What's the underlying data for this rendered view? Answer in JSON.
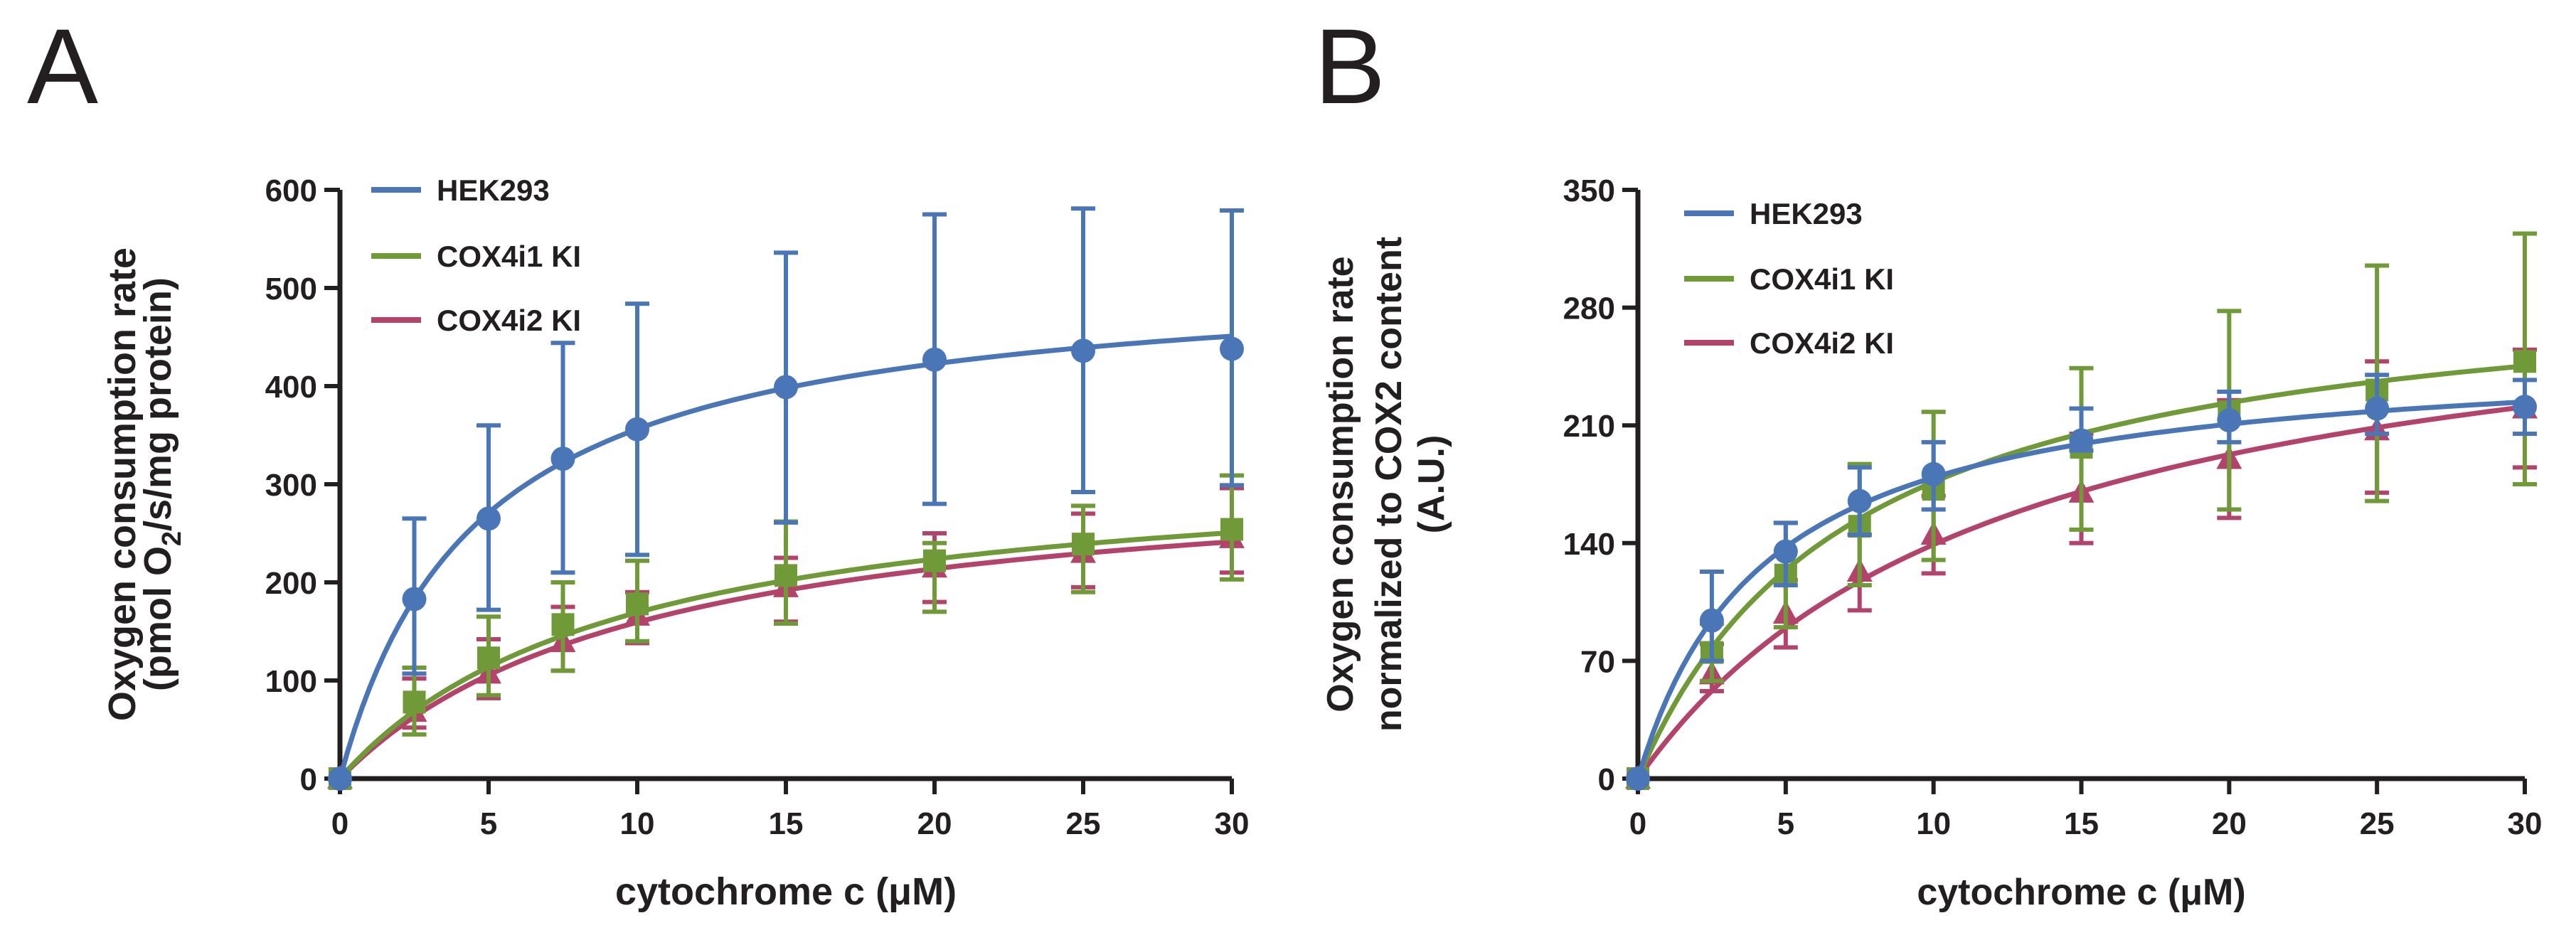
{
  "colors": {
    "axis": "#231f20",
    "HEK293": "#4a76b8",
    "COX4i1 KI": "#6f9a37",
    "COX4i2 KI": "#b4436c"
  },
  "chart_data": [
    {
      "type": "line",
      "panel_label": "A",
      "xlabel": "cytochrome c (μM)",
      "ylabel_lines": [
        "Oxygen consumption rate",
        "(pmol O",
        "2",
        "/s/mg protein)"
      ],
      "xlim": [
        0,
        30
      ],
      "ylim": [
        0,
        600
      ],
      "xticks": [
        0,
        5,
        10,
        15,
        20,
        25,
        30
      ],
      "yticks": [
        0,
        100,
        200,
        300,
        400,
        500,
        600
      ],
      "legend": [
        "HEK293",
        "COX4i1 KI",
        "COX4i2 KI"
      ],
      "x": [
        0,
        2.5,
        5,
        7.5,
        10,
        15,
        20,
        25,
        30
      ],
      "series": [
        {
          "name": "HEK293",
          "marker": "circle",
          "fit": {
            "vmax": 520,
            "km": 4.6
          },
          "values": [
            0,
            183,
            265,
            326,
            356,
            399,
            427,
            436,
            438
          ],
          "err_hi": [
            0,
            265,
            360,
            444,
            484,
            536,
            575,
            581,
            579
          ],
          "err_lo": [
            0,
            107,
            172,
            210,
            228,
            261,
            280,
            292,
            299
          ]
        },
        {
          "name": "COX4i1 KI",
          "marker": "square",
          "fit": {
            "vmax": 330,
            "km": 9.5
          },
          "values": [
            0,
            78,
            123,
            157,
            178,
            207,
            222,
            239,
            254
          ],
          "err_hi": [
            0,
            113,
            165,
            200,
            222,
            262,
            240,
            278,
            309
          ],
          "err_lo": [
            0,
            45,
            85,
            110,
            140,
            158,
            170,
            190,
            203
          ]
        },
        {
          "name": "COX4i2 KI",
          "marker": "triangle",
          "fit": {
            "vmax": 325,
            "km": 10.4
          },
          "values": [
            0,
            68,
            107,
            139,
            166,
            195,
            215,
            230,
            245
          ],
          "err_hi": [
            0,
            102,
            142,
            175,
            190,
            225,
            250,
            270,
            296
          ],
          "err_lo": [
            0,
            52,
            82,
            110,
            138,
            160,
            180,
            195,
            210
          ]
        }
      ]
    },
    {
      "type": "line",
      "panel_label": "B",
      "xlabel": "cytochrome c (μM)",
      "ylabel_lines": [
        "Oxygen consumption rate",
        "normalized to COX2 content",
        "(A.U.)"
      ],
      "xlim": [
        0,
        30
      ],
      "ylim": [
        0,
        350
      ],
      "xticks": [
        0,
        5,
        10,
        15,
        20,
        25,
        30
      ],
      "yticks": [
        0,
        70,
        140,
        210,
        280,
        350
      ],
      "legend": [
        "HEK293",
        "COX4i1 KI",
        "COX4i2 KI"
      ],
      "x": [
        0,
        2.5,
        5,
        7.5,
        10,
        15,
        20,
        25,
        30
      ],
      "series": [
        {
          "name": "HEK293",
          "marker": "circle",
          "fit": {
            "vmax": 256,
            "km": 4.3
          },
          "values": [
            0,
            94,
            135,
            165,
            181,
            201,
            213,
            220,
            221
          ],
          "err_hi": [
            0,
            123,
            152,
            185,
            200,
            220,
            230,
            240,
            237
          ],
          "err_lo": [
            0,
            70,
            115,
            145,
            160,
            195,
            200,
            205,
            205
          ]
        },
        {
          "name": "COX4i1 KI",
          "marker": "square",
          "fit": {
            "vmax": 305,
            "km": 7.3
          },
          "values": [
            0,
            75,
            121,
            150,
            172,
            197,
            218,
            231,
            248
          ],
          "err_hi": [
            0,
            92,
            152,
            187,
            218,
            244,
            278,
            305,
            324
          ],
          "err_lo": [
            0,
            58,
            90,
            115,
            130,
            148,
            160,
            165,
            175
          ]
        },
        {
          "name": "COX4i2 KI",
          "marker": "triangle",
          "fit": {
            "vmax": 313,
            "km": 12.5
          },
          "values": [
            0,
            62,
            98,
            123,
            145,
            170,
            190,
            207,
            220
          ],
          "err_hi": [
            0,
            80,
            118,
            145,
            168,
            205,
            225,
            248,
            255
          ],
          "err_lo": [
            0,
            52,
            78,
            100,
            122,
            140,
            155,
            170,
            185
          ]
        }
      ]
    }
  ]
}
